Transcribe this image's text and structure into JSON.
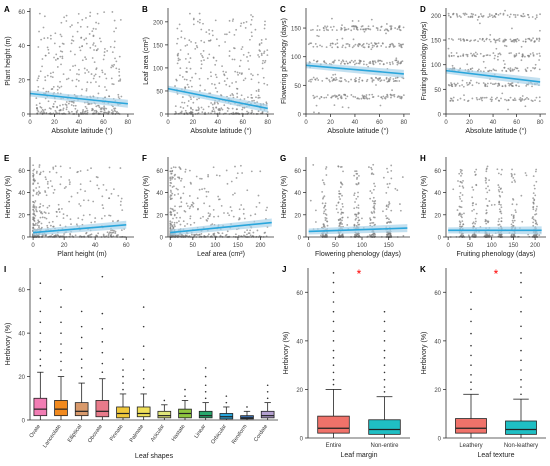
{
  "colors": {
    "point": "#7f7f7f",
    "fit": "#2aa6dc",
    "band": "#a9d3ea",
    "star": "#ff0000",
    "axis": "#333333"
  },
  "chart_data": [
    {
      "id": "A",
      "type": "scatter",
      "panel_label": "A",
      "xlabel": "Absolute latitude (°)",
      "ylabel": "Plant height (m)",
      "xlim": [
        0,
        85
      ],
      "ylim": [
        0,
        62
      ],
      "xticks": [
        0,
        20,
        40,
        60,
        80
      ],
      "yticks": [
        0,
        20,
        40,
        60
      ],
      "fit": {
        "x": [
          0,
          80
        ],
        "y": [
          12,
          6
        ]
      },
      "grid": false
    },
    {
      "id": "B",
      "type": "scatter",
      "panel_label": "B",
      "xlabel": "Absolute latitude (°)",
      "ylabel": "Leaf area (cm²)",
      "xlim": [
        0,
        85
      ],
      "ylim": [
        0,
        230
      ],
      "xticks": [
        0,
        20,
        40,
        60,
        80
      ],
      "yticks": [
        0,
        50,
        100,
        150,
        200
      ],
      "fit": {
        "x": [
          0,
          80
        ],
        "y": [
          55,
          12
        ]
      },
      "grid": false
    },
    {
      "id": "C",
      "type": "scatter",
      "panel_label": "C",
      "xlabel": "Absolute latitude (°)",
      "ylabel": "Flowering phenology (days)",
      "xlim": [
        0,
        85
      ],
      "ylim": [
        0,
        185
      ],
      "xticks": [
        0,
        20,
        40,
        60,
        80
      ],
      "yticks": [
        0,
        50,
        100,
        150
      ],
      "fit": {
        "x": [
          0,
          80
        ],
        "y": [
          85,
          70
        ]
      },
      "grid": false
    },
    {
      "id": "D",
      "type": "scatter",
      "panel_label": "D",
      "xlabel": "Absolute latitude (°)",
      "ylabel": "Fruiting phenology (days)",
      "xlim": [
        0,
        85
      ],
      "ylim": [
        0,
        215
      ],
      "xticks": [
        0,
        20,
        40,
        60,
        80
      ],
      "yticks": [
        0,
        50,
        100,
        150,
        200
      ],
      "fit": {
        "x": [
          0,
          80
        ],
        "y": [
          88,
          65
        ]
      },
      "grid": false
    },
    {
      "id": "E",
      "type": "scatter",
      "panel_label": "E",
      "xlabel": "Plant height (m)",
      "ylabel": "Herbivory (%)",
      "xlim": [
        -2,
        65
      ],
      "ylim": [
        0,
        72
      ],
      "xticks": [
        0,
        20,
        40,
        60
      ],
      "yticks": [
        0,
        20,
        40,
        60
      ],
      "fit": {
        "x": [
          0,
          60
        ],
        "y": [
          4,
          11
        ]
      },
      "grid": false
    },
    {
      "id": "F",
      "type": "scatter",
      "panel_label": "F",
      "xlabel": "Leaf area (cm²)",
      "ylabel": "Herbivory (%)",
      "xlim": [
        -5,
        230
      ],
      "ylim": [
        0,
        72
      ],
      "xticks": [
        0,
        50,
        100,
        150,
        200
      ],
      "yticks": [
        0,
        20,
        40,
        60
      ],
      "fit": {
        "x": [
          0,
          225
        ],
        "y": [
          4,
          13
        ]
      },
      "grid": false
    },
    {
      "id": "G",
      "type": "scatter",
      "panel_label": "G",
      "xlabel": "Flowering phenology (days)",
      "ylabel": "Herbivory (%)",
      "xlim": [
        -5,
        190
      ],
      "ylim": [
        0,
        72
      ],
      "xticks": [
        0,
        50,
        100,
        150
      ],
      "yticks": [
        0,
        20,
        40,
        60
      ],
      "fit": {
        "x": [
          0,
          185
        ],
        "y": [
          5,
          8
        ]
      },
      "grid": false
    },
    {
      "id": "H",
      "type": "scatter",
      "panel_label": "H",
      "xlabel": "Fruiting phenology (days)",
      "ylabel": "Herbivory (%)",
      "xlim": [
        -5,
        225
      ],
      "ylim": [
        0,
        72
      ],
      "xticks": [
        0,
        50,
        100,
        150,
        200
      ],
      "yticks": [
        0,
        20,
        40,
        60
      ],
      "fit": {
        "x": [
          0,
          215
        ],
        "y": [
          6,
          6
        ]
      },
      "grid": false
    },
    {
      "id": "I",
      "type": "box",
      "panel_label": "I",
      "xlabel": "Leaf shapes",
      "ylabel": "Herbivory (%)",
      "ylim": [
        0,
        70
      ],
      "yticks": [
        0,
        20,
        40,
        60
      ],
      "categories": [
        "Ovate",
        "Lanceolate",
        "Elliptical",
        "Obovate",
        "Pinnate",
        "Palmate",
        "Acicular",
        "Hastate",
        "Linear",
        "Orbicular",
        "Reniform",
        "Cordate"
      ],
      "colors": [
        "#f27db4",
        "#f28a1e",
        "#d99a6c",
        "#e87a8a",
        "#f0c83c",
        "#f0e05a",
        "#e0e67a",
        "#8ec63f",
        "#27a86c",
        "#2aa6dc",
        "#3a6fb0",
        "#b4a0d0"
      ],
      "boxes": [
        {
          "min": 0,
          "q1": 2,
          "median": 5,
          "q3": 10,
          "max": 22,
          "outliers": [
            25,
            28,
            32,
            36,
            40,
            45,
            50,
            56,
            63
          ]
        },
        {
          "min": 0,
          "q1": 2,
          "median": 5,
          "q3": 9,
          "max": 20,
          "outliers": [
            23,
            27,
            31,
            35,
            40,
            45,
            52,
            60
          ]
        },
        {
          "min": 0,
          "q1": 2,
          "median": 4,
          "q3": 8,
          "max": 17,
          "outliers": [
            20,
            24,
            28,
            33,
            38,
            43,
            50
          ]
        },
        {
          "min": 0,
          "q1": 1.5,
          "median": 4,
          "q3": 9,
          "max": 19,
          "outliers": [
            22,
            26,
            31,
            36,
            42,
            49,
            66
          ]
        },
        {
          "min": 0,
          "q1": 1,
          "median": 3,
          "q3": 6,
          "max": 12,
          "outliers": [
            14,
            17,
            20,
            23,
            28
          ]
        },
        {
          "min": 0,
          "q1": 1.5,
          "median": 3,
          "q3": 6,
          "max": 12,
          "outliers": [
            15,
            19,
            23,
            28,
            34,
            43,
            52
          ]
        },
        {
          "min": 0,
          "q1": 1,
          "median": 2,
          "q3": 4,
          "max": 7,
          "outliers": [
            9
          ]
        },
        {
          "min": 0,
          "q1": 1,
          "median": 3,
          "q3": 5,
          "max": 9,
          "outliers": [
            11,
            14
          ]
        },
        {
          "min": 0,
          "q1": 1,
          "median": 2,
          "q3": 4,
          "max": 8,
          "outliers": [
            10,
            13,
            16,
            20,
            24
          ]
        },
        {
          "min": 0,
          "q1": 0.5,
          "median": 1.5,
          "q3": 3,
          "max": 6,
          "outliers": [
            8,
            11
          ]
        },
        {
          "min": 0,
          "q1": 0.5,
          "median": 1,
          "q3": 2,
          "max": 4,
          "outliers": [
            6
          ]
        },
        {
          "min": 0,
          "q1": 1,
          "median": 2,
          "q3": 4,
          "max": 8,
          "outliers": [
            10,
            13,
            16
          ]
        }
      ]
    },
    {
      "id": "J",
      "type": "box",
      "panel_label": "J",
      "xlabel": "Leaf margin",
      "ylabel": "Herbivory (%)",
      "ylim": [
        0,
        70
      ],
      "yticks": [
        0,
        20,
        40,
        60
      ],
      "categories": [
        "Entire",
        "Non-entire"
      ],
      "colors": [
        "#f0726a",
        "#1fbfc4"
      ],
      "annotation": "*",
      "boxes": [
        {
          "min": 0,
          "q1": 2,
          "median": 4,
          "q3": 9,
          "max": 20,
          "outliers": [
            22,
            24,
            27,
            30,
            33,
            36,
            40,
            44,
            48,
            52,
            56,
            60,
            64,
            68
          ]
        },
        {
          "min": 0,
          "q1": 1.5,
          "median": 3.5,
          "q3": 7.5,
          "max": 17,
          "outliers": [
            19,
            21,
            24,
            27,
            30,
            33,
            36,
            40,
            44,
            48,
            52
          ]
        }
      ]
    },
    {
      "id": "K",
      "type": "box",
      "panel_label": "K",
      "xlabel": "Leaf texture",
      "ylabel": "Herbivory (%)",
      "ylim": [
        0,
        70
      ],
      "yticks": [
        0,
        20,
        40,
        60
      ],
      "categories": [
        "Leathery",
        "Non-leathery"
      ],
      "colors": [
        "#f0726a",
        "#1fbfc4"
      ],
      "annotation": "*",
      "boxes": [
        {
          "min": 0,
          "q1": 2,
          "median": 4,
          "q3": 8,
          "max": 18,
          "outliers": [
            20,
            23,
            26,
            30,
            34,
            38,
            43,
            48,
            53,
            60
          ]
        },
        {
          "min": 0,
          "q1": 1.5,
          "median": 3.5,
          "q3": 7,
          "max": 16,
          "outliers": [
            18,
            21,
            24,
            28,
            32,
            36,
            41,
            46,
            52,
            58,
            64,
            68
          ]
        }
      ]
    }
  ]
}
